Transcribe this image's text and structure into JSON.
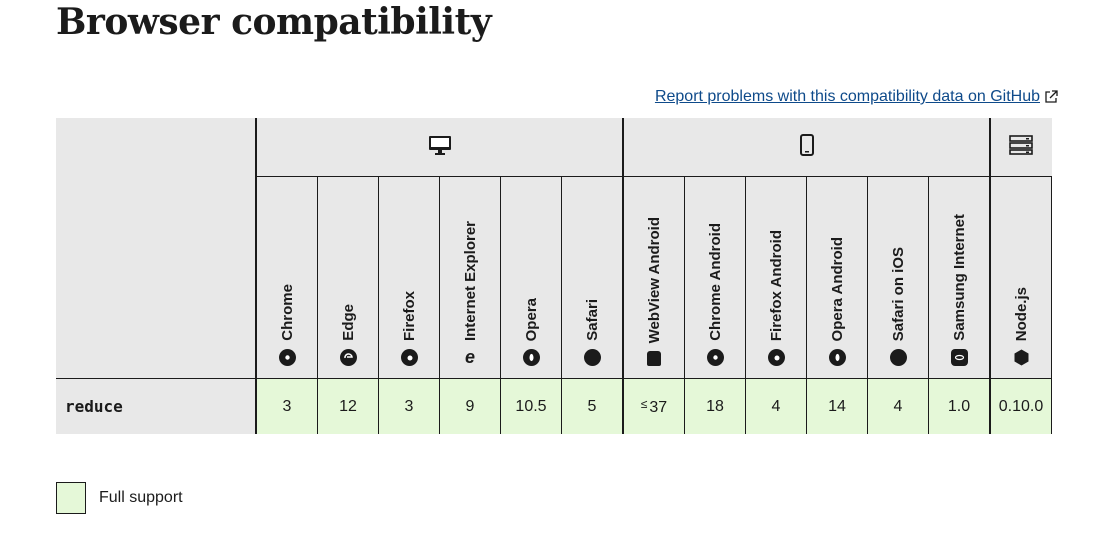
{
  "heading": "Browser compatibility",
  "report_link": "Report problems with this compatibility data on GitHub",
  "platforms": [
    {
      "name": "desktop",
      "icon": "desktop-icon"
    },
    {
      "name": "mobile",
      "icon": "mobile-icon"
    },
    {
      "name": "server",
      "icon": "server-icon"
    }
  ],
  "browsers": [
    "Chrome",
    "Edge",
    "Firefox",
    "Internet Explorer",
    "Opera",
    "Safari",
    "WebView Android",
    "Chrome Android",
    "Firefox Android",
    "Opera Android",
    "Safari on iOS",
    "Samsung Internet",
    "Node.js"
  ],
  "feature": {
    "name": "reduce",
    "versions": [
      "3",
      "12",
      "3",
      "9",
      "10.5",
      "5",
      "37",
      "18",
      "4",
      "14",
      "4",
      "1.0",
      "0.10.0"
    ],
    "webview_prefix": "≤"
  },
  "legend": {
    "label": "Full support",
    "color": "#e5f8d8"
  }
}
